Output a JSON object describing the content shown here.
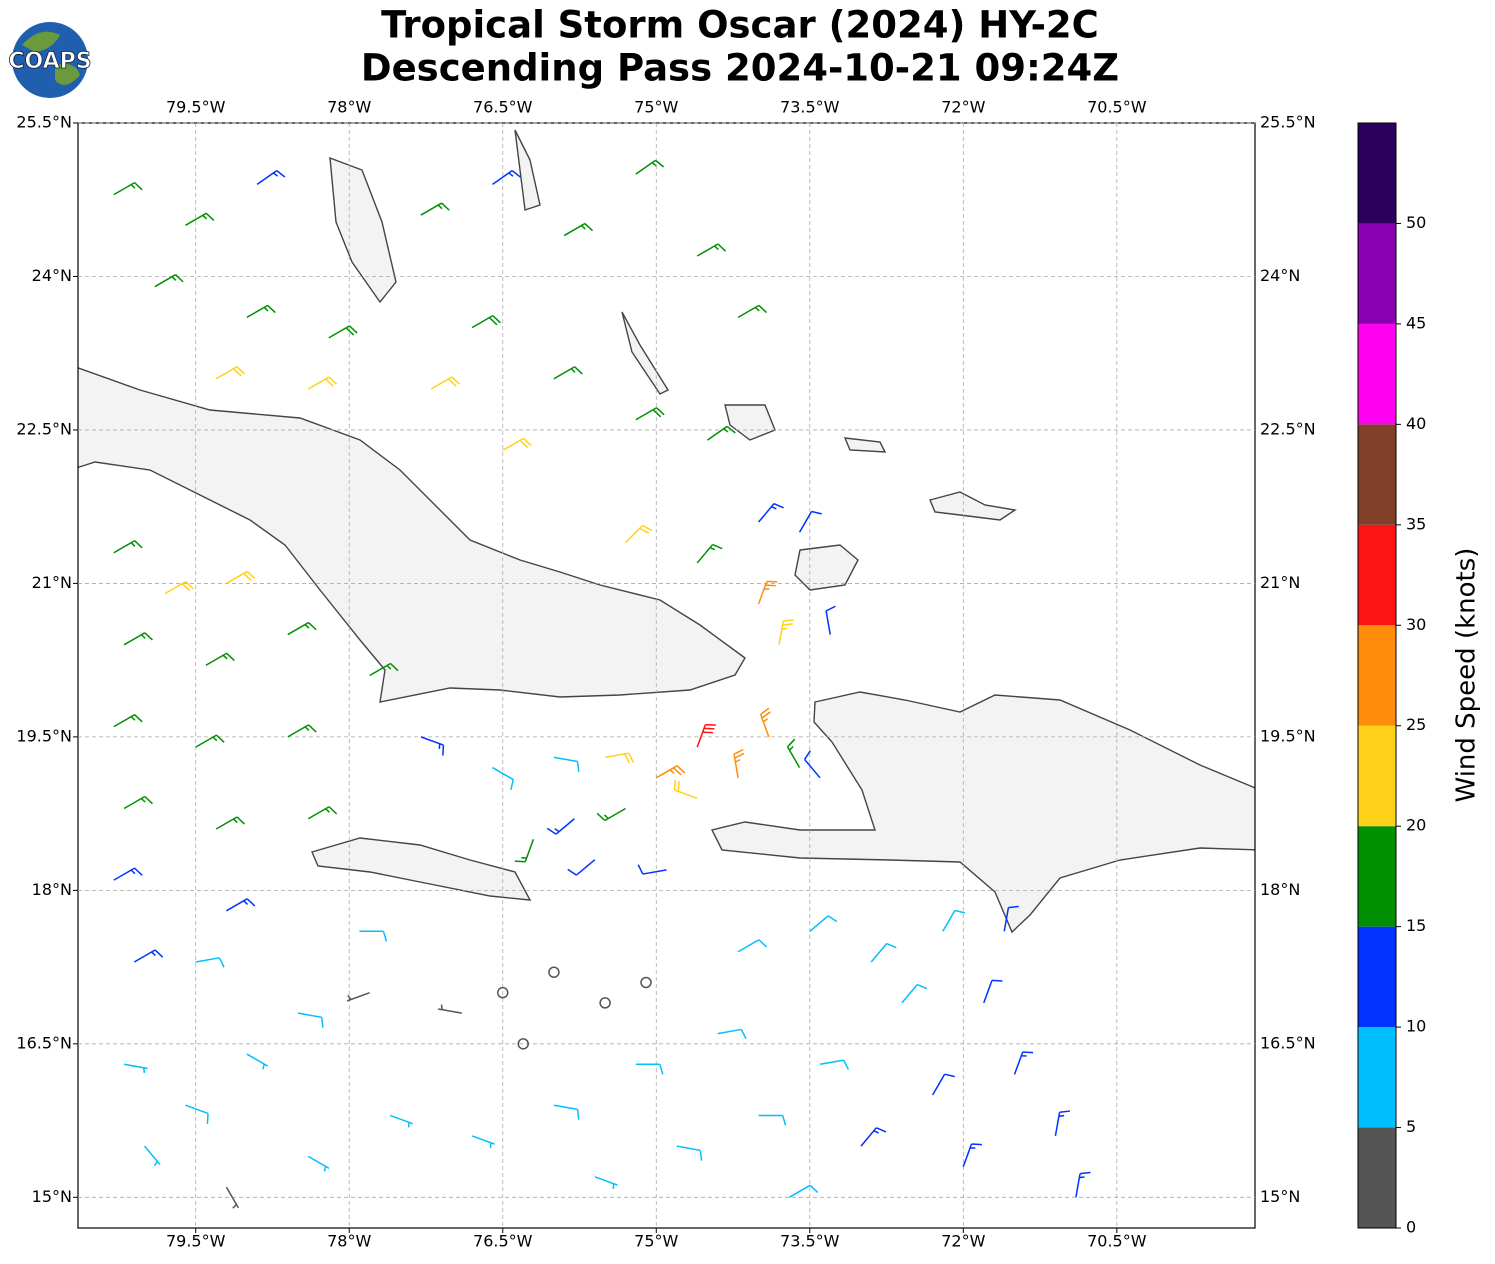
{
  "logo": "COAPS",
  "chart_data": {
    "type": "wind-barb",
    "title": "Tropical Storm Oscar (2024) HY-2C",
    "subtitle": "Descending Pass 2024-10-21 09:24Z",
    "xlim": [
      -80.65,
      -69.15
    ],
    "ylim": [
      14.7,
      25.5
    ],
    "xticks": [
      {
        "value": -79.5,
        "label": "79.5°W"
      },
      {
        "value": -78,
        "label": "78°W"
      },
      {
        "value": -76.5,
        "label": "76.5°W"
      },
      {
        "value": -75,
        "label": "75°W"
      },
      {
        "value": -73.5,
        "label": "73.5°W"
      },
      {
        "value": -72,
        "label": "72°W"
      },
      {
        "value": -70.5,
        "label": "70.5°W"
      }
    ],
    "yticks": [
      {
        "value": 15,
        "label": "15°N"
      },
      {
        "value": 16.5,
        "label": "16.5°N"
      },
      {
        "value": 18,
        "label": "18°N"
      },
      {
        "value": 19.5,
        "label": "19.5°N"
      },
      {
        "value": 21,
        "label": "21°N"
      },
      {
        "value": 22.5,
        "label": "22.5°N"
      },
      {
        "value": 24,
        "label": "24°N"
      },
      {
        "value": 25.5,
        "label": "25.5°N"
      }
    ],
    "grid": true,
    "barbs": {
      "lon": [
        -80.3,
        -79.6,
        -78.9,
        -79.9,
        -79.0,
        -78.2,
        -77.3,
        -76.6,
        -75.9,
        -75.2,
        -74.6,
        -74.2,
        -76.8,
        -76.0,
        -75.2,
        -74.5,
        -77.2,
        -76.5,
        -79.3,
        -78.4,
        -74.0,
        -73.6,
        -74.6,
        -74.0,
        -73.8,
        -73.3,
        -75.3,
        -80.3,
        -79.8,
        -79.2,
        -80.2,
        -79.4,
        -78.6,
        -77.8,
        -80.3,
        -79.5,
        -78.6,
        -80.2,
        -79.3,
        -78.4,
        -80.3,
        -79.2,
        -80.1,
        -77.3,
        -76.6,
        -76.0,
        -75.5,
        -75.0,
        -74.6,
        -74.2,
        -73.9,
        -73.6,
        -74.6,
        -75.3,
        -75.8,
        -76.2,
        -75.6,
        -74.9,
        -73.4,
        -76.5,
        -76.0,
        -75.5,
        -75.1,
        -76.9,
        -77.8,
        -76.3,
        -80.2,
        -79.6,
        -79.0,
        -80.0,
        -79.2,
        -78.4,
        -77.6,
        -78.5,
        -79.5,
        -77.9,
        -76.8,
        -76.0,
        -75.2,
        -74.4,
        -75.6,
        -74.8,
        -74.0,
        -73.4,
        -74.2,
        -73.5,
        -72.9,
        -72.6,
        -72.2,
        -71.8,
        -71.5,
        -72.3,
        -73.0,
        -72.0,
        -71.1,
        -70.9,
        -73.7,
        -71.6
      ],
      "lat": [
        24.8,
        24.5,
        24.9,
        23.9,
        23.6,
        23.4,
        24.6,
        24.9,
        24.4,
        25.0,
        24.2,
        23.6,
        23.5,
        23.0,
        22.6,
        22.4,
        22.9,
        22.3,
        23.0,
        22.9,
        21.6,
        21.5,
        21.2,
        20.8,
        20.4,
        20.5,
        21.4,
        21.3,
        20.9,
        21.0,
        20.4,
        20.2,
        20.5,
        20.1,
        19.6,
        19.4,
        19.5,
        18.8,
        18.6,
        18.7,
        18.1,
        17.8,
        17.3,
        19.5,
        19.2,
        19.3,
        19.3,
        19.1,
        19.4,
        19.1,
        19.5,
        19.2,
        18.9,
        18.8,
        18.7,
        18.5,
        18.3,
        18.2,
        19.1,
        17.0,
        17.2,
        16.9,
        17.1,
        16.8,
        17.0,
        16.5,
        16.3,
        15.9,
        16.4,
        15.5,
        15.1,
        15.4,
        15.8,
        16.8,
        17.3,
        17.6,
        15.6,
        15.9,
        16.3,
        16.6,
        15.2,
        15.5,
        15.8,
        16.3,
        17.4,
        17.6,
        17.3,
        16.9,
        17.6,
        16.9,
        16.2,
        16.0,
        15.5,
        15.3,
        15.6,
        15.0,
        15.0,
        17.6
      ],
      "speed": [
        17,
        17,
        13,
        17,
        17,
        18,
        16,
        13,
        17,
        15,
        17,
        17,
        18,
        17,
        18,
        17,
        21,
        22,
        22,
        22,
        13,
        12,
        17,
        27,
        23,
        12,
        22,
        17,
        22,
        22,
        17,
        17,
        17,
        17,
        17,
        17,
        17,
        16,
        16,
        16,
        13,
        13,
        13,
        13,
        8,
        8,
        22,
        27,
        32,
        27,
        27,
        17,
        22,
        17,
        13,
        15,
        12,
        12,
        12,
        0,
        0,
        0,
        2,
        3,
        4,
        0,
        7,
        8,
        7,
        7,
        4,
        7,
        7,
        8,
        9,
        8,
        7,
        8,
        8,
        8,
        7,
        8,
        9,
        9,
        8,
        8,
        9,
        9,
        9,
        12,
        13,
        12,
        13,
        13,
        13,
        13,
        9,
        12
      ],
      "direction": [
        60,
        60,
        55,
        60,
        60,
        60,
        60,
        55,
        60,
        55,
        60,
        60,
        60,
        60,
        60,
        55,
        60,
        60,
        60,
        60,
        40,
        30,
        40,
        20,
        10,
        350,
        45,
        60,
        60,
        60,
        60,
        60,
        60,
        60,
        60,
        60,
        60,
        60,
        60,
        60,
        60,
        60,
        60,
        110,
        120,
        100,
        80,
        60,
        20,
        350,
        340,
        330,
        290,
        240,
        230,
        200,
        230,
        260,
        320,
        0,
        0,
        0,
        300,
        280,
        250,
        0,
        100,
        110,
        120,
        140,
        150,
        120,
        110,
        100,
        80,
        90,
        110,
        100,
        90,
        80,
        110,
        100,
        90,
        80,
        60,
        50,
        40,
        40,
        30,
        20,
        20,
        30,
        40,
        20,
        10,
        10,
        60,
        10
      ]
    },
    "colorbar": {
      "label": "Wind Speed (knots)",
      "lim": [
        0,
        55
      ],
      "ticks": [
        0,
        5,
        10,
        15,
        20,
        25,
        30,
        35,
        40,
        45,
        50
      ],
      "colors": [
        "#555555",
        "#00bfff",
        "#0033ff",
        "#009000",
        "#ffd21a",
        "#ff8c0a",
        "#ff1414",
        "#80402a",
        "#ff00f0",
        "#8800b0",
        "#2d005f"
      ]
    }
  }
}
